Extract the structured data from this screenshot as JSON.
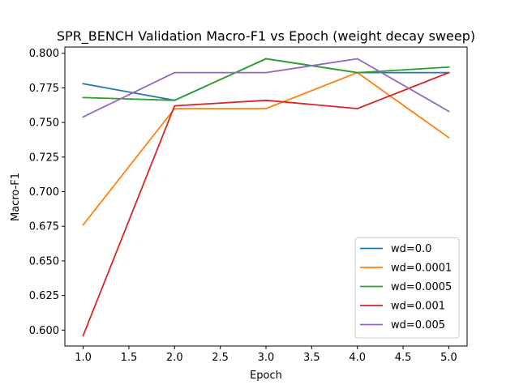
{
  "chart_data": {
    "type": "line",
    "title": "SPR_BENCH Validation Macro-F1 vs Epoch (weight decay sweep)",
    "xlabel": "Epoch",
    "ylabel": "Macro-F1",
    "xlim": [
      0.8,
      5.2
    ],
    "ylim": [
      0.5885,
      0.8045
    ],
    "xticks": [
      1.0,
      1.5,
      2.0,
      2.5,
      3.0,
      3.5,
      4.0,
      4.5,
      5.0
    ],
    "xtick_labels": [
      "1.0",
      "1.5",
      "2.0",
      "2.5",
      "3.0",
      "3.5",
      "4.0",
      "4.5",
      "5.0"
    ],
    "yticks": [
      0.6,
      0.625,
      0.65,
      0.675,
      0.7,
      0.725,
      0.75,
      0.775,
      0.8
    ],
    "ytick_labels": [
      "0.600",
      "0.625",
      "0.650",
      "0.675",
      "0.700",
      "0.725",
      "0.750",
      "0.775",
      "0.800"
    ],
    "grid": false,
    "legend_position": "lower-right",
    "x": [
      1,
      2,
      3,
      4,
      5
    ],
    "series": [
      {
        "name": "wd=0.0",
        "color": "#1f77b4",
        "values": [
          0.778,
          0.766,
          0.796,
          0.786,
          0.786
        ]
      },
      {
        "name": "wd=0.0001",
        "color": "#ff7f0e",
        "values": [
          0.676,
          0.76,
          0.76,
          0.786,
          0.739
        ]
      },
      {
        "name": "wd=0.0005",
        "color": "#2ca02c",
        "values": [
          0.768,
          0.766,
          0.796,
          0.786,
          0.79
        ]
      },
      {
        "name": "wd=0.001",
        "color": "#d62728",
        "values": [
          0.596,
          0.762,
          0.766,
          0.76,
          0.786
        ]
      },
      {
        "name": "wd=0.005",
        "color": "#9467bd",
        "values": [
          0.754,
          0.786,
          0.786,
          0.796,
          0.758
        ]
      }
    ]
  }
}
